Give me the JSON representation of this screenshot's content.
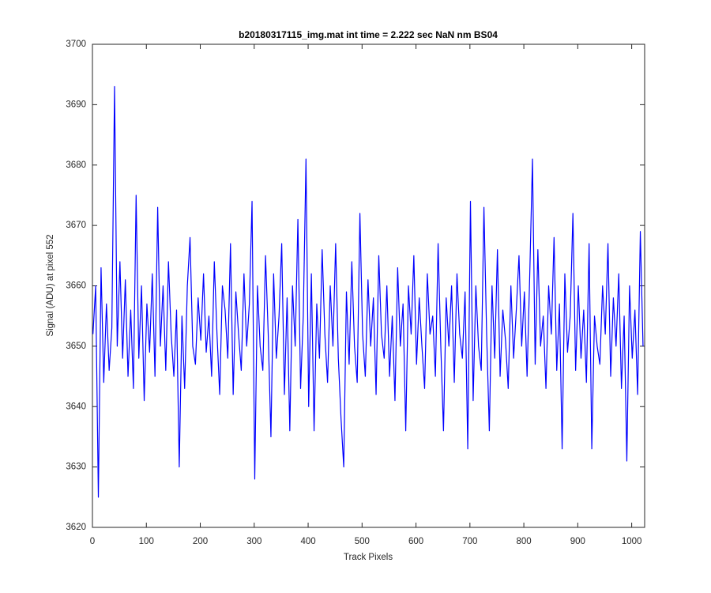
{
  "chart_data": {
    "type": "line",
    "title": "b20180317115_img.mat int time = 2.222 sec  NaN nm BS04",
    "x_label": "Track Pixels",
    "y_label": "Signal (ADU) at pixel 552",
    "x": [
      1,
      6,
      11,
      16,
      21,
      26,
      31,
      36,
      41,
      46,
      51,
      56,
      61,
      66,
      71,
      76,
      81,
      86,
      91,
      96,
      101,
      106,
      111,
      116,
      121,
      126,
      131,
      136,
      141,
      146,
      151,
      156,
      161,
      166,
      171,
      176,
      181,
      186,
      191,
      196,
      201,
      206,
      211,
      216,
      221,
      226,
      231,
      236,
      241,
      246,
      251,
      256,
      261,
      266,
      271,
      276,
      281,
      286,
      291,
      296,
      301,
      306,
      311,
      316,
      321,
      326,
      331,
      336,
      341,
      346,
      351,
      356,
      361,
      366,
      371,
      376,
      381,
      386,
      391,
      396,
      401,
      406,
      411,
      416,
      421,
      426,
      431,
      436,
      441,
      446,
      451,
      456,
      461,
      466,
      471,
      476,
      481,
      486,
      491,
      496,
      501,
      506,
      511,
      516,
      521,
      526,
      531,
      536,
      541,
      546,
      551,
      556,
      561,
      566,
      571,
      576,
      581,
      586,
      591,
      596,
      601,
      606,
      611,
      616,
      621,
      626,
      631,
      636,
      641,
      646,
      651,
      656,
      661,
      666,
      671,
      676,
      681,
      686,
      691,
      696,
      701,
      706,
      711,
      716,
      721,
      726,
      731,
      736,
      741,
      746,
      751,
      756,
      761,
      766,
      771,
      776,
      781,
      786,
      791,
      796,
      801,
      806,
      811,
      816,
      821,
      826,
      831,
      836,
      841,
      846,
      851,
      856,
      861,
      866,
      871,
      876,
      881,
      886,
      891,
      896,
      901,
      906,
      911,
      916,
      921,
      926,
      931,
      936,
      941,
      946,
      951,
      956,
      961,
      966,
      971,
      976,
      981,
      986,
      991,
      996,
      1001,
      1006,
      1011,
      1016,
      1021
    ],
    "series": [
      {
        "color": "#0000ff",
        "values": [
          3652,
          3660,
          3625,
          3663,
          3644,
          3657,
          3646,
          3653,
          3693,
          3650,
          3664,
          3648,
          3661,
          3645,
          3656,
          3643,
          3675,
          3648,
          3660,
          3641,
          3657,
          3649,
          3662,
          3645,
          3673,
          3650,
          3660,
          3646,
          3664,
          3652,
          3645,
          3656,
          3630,
          3655,
          3643,
          3660,
          3668,
          3650,
          3647,
          3658,
          3651,
          3662,
          3649,
          3655,
          3645,
          3664,
          3652,
          3642,
          3660,
          3656,
          3648,
          3667,
          3642,
          3659,
          3652,
          3646,
          3662,
          3650,
          3657,
          3674,
          3628,
          3660,
          3650,
          3646,
          3665,
          3652,
          3635,
          3662,
          3648,
          3655,
          3667,
          3642,
          3658,
          3636,
          3660,
          3650,
          3671,
          3643,
          3655,
          3681,
          3640,
          3662,
          3636,
          3657,
          3648,
          3666,
          3652,
          3644,
          3660,
          3650,
          3667,
          3648,
          3638,
          3630,
          3659,
          3647,
          3664,
          3650,
          3644,
          3672,
          3652,
          3645,
          3661,
          3650,
          3658,
          3642,
          3665,
          3652,
          3648,
          3660,
          3645,
          3655,
          3641,
          3663,
          3650,
          3657,
          3636,
          3660,
          3652,
          3665,
          3647,
          3658,
          3650,
          3643,
          3662,
          3652,
          3655,
          3645,
          3667,
          3650,
          3636,
          3658,
          3650,
          3660,
          3644,
          3662,
          3652,
          3648,
          3659,
          3633,
          3674,
          3641,
          3660,
          3650,
          3646,
          3673,
          3652,
          3636,
          3660,
          3648,
          3666,
          3645,
          3656,
          3651,
          3643,
          3660,
          3648,
          3656,
          3665,
          3650,
          3659,
          3645,
          3662,
          3681,
          3647,
          3666,
          3650,
          3655,
          3643,
          3660,
          3652,
          3668,
          3646,
          3657,
          3633,
          3662,
          3649,
          3655,
          3672,
          3646,
          3660,
          3648,
          3656,
          3644,
          3667,
          3633,
          3655,
          3650,
          3647,
          3660,
          3652,
          3667,
          3645,
          3658,
          3650,
          3662,
          3643,
          3655,
          3631,
          3660,
          3648,
          3656,
          3642,
          3669,
          3650
        ]
      }
    ],
    "xlim": [
      0,
      1024
    ],
    "xticks": [
      0,
      100,
      200,
      300,
      400,
      500,
      600,
      700,
      800,
      900,
      1000
    ],
    "ylim": [
      3620,
      3700
    ],
    "yticks": [
      3620,
      3630,
      3640,
      3650,
      3660,
      3670,
      3680,
      3690,
      3700
    ]
  }
}
